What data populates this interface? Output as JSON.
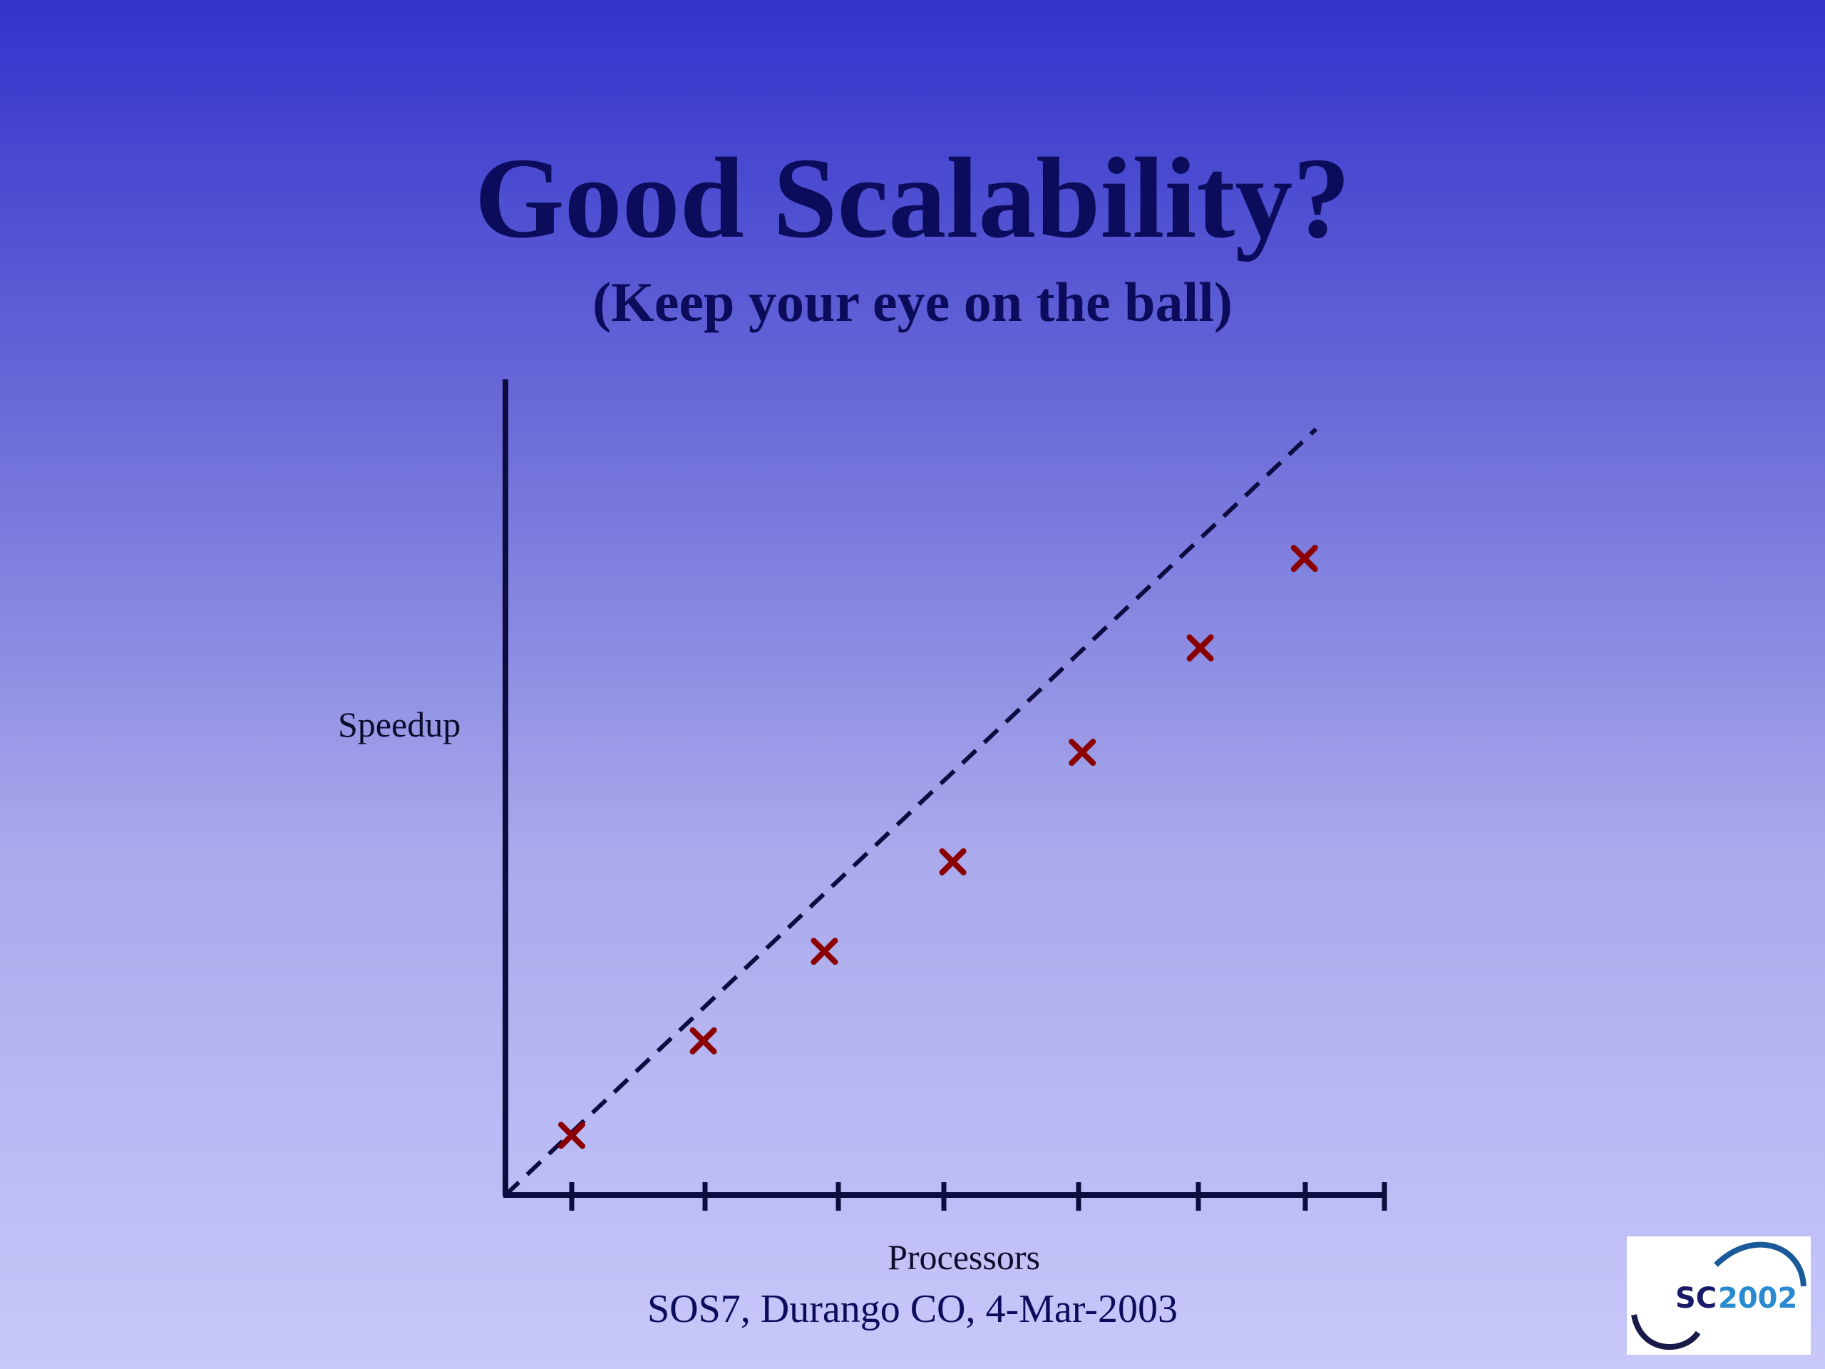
{
  "slide": {
    "title": "Good Scalability?",
    "subtitle": "(Keep your eye on the ball)",
    "footer": "SOS7, Durango CO, 4-Mar-2003",
    "logo_text": "SC2002",
    "background_top": "#3333cc",
    "background_bottom": "#c8c8fa",
    "text_color": "#0c0c5c"
  },
  "chart_data": {
    "type": "scatter",
    "xlabel": "Processors",
    "ylabel": "Speedup",
    "x_ticks": 7,
    "xlim": [
      0,
      8.2
    ],
    "ylim": [
      0,
      8.2
    ],
    "grid": false,
    "legend": "none",
    "ideal_line": {
      "style": "dashed",
      "color": "#0c0c40",
      "from": [
        0,
        0
      ],
      "to": [
        7.7,
        7.7
      ]
    },
    "series": [
      {
        "marker": "x",
        "color": "#8b0000",
        "points": [
          {
            "x": 0.63,
            "y": 0.6
          },
          {
            "x": 1.88,
            "y": 1.55
          },
          {
            "x": 3.03,
            "y": 2.45
          },
          {
            "x": 4.25,
            "y": 3.35
          },
          {
            "x": 5.48,
            "y": 4.45
          },
          {
            "x": 6.6,
            "y": 5.5
          },
          {
            "x": 7.59,
            "y": 6.4
          }
        ]
      }
    ]
  }
}
